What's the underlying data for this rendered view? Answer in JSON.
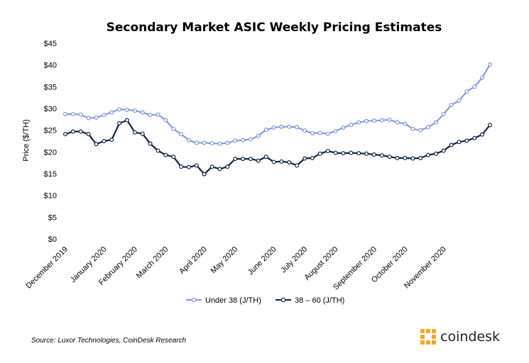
{
  "chart_data": {
    "type": "line",
    "title": "Secondary Market ASIC Weekly Pricing Estimates",
    "ylabel": "Price ($/TH)",
    "ylim": [
      0,
      45
    ],
    "yticks": [
      "$0",
      "$5",
      "$10",
      "$15",
      "$20",
      "$25",
      "$30",
      "$35",
      "$40",
      "$45"
    ],
    "ytick_values": [
      0,
      5,
      10,
      15,
      20,
      25,
      30,
      35,
      40,
      45
    ],
    "month_labels": [
      "December 2019",
      "January 2020",
      "February 2020",
      "March 2020",
      "April 2020",
      "May 2020",
      "June 2020",
      "July 2020",
      "August 2020",
      "September 2020",
      "October 2020",
      "November 2020"
    ],
    "month_label_index": [
      0,
      5,
      9,
      13,
      18,
      22,
      27,
      31,
      35,
      40,
      44,
      49
    ],
    "grid": false,
    "legend_position": "bottom",
    "series": [
      {
        "name": "Under 38 (J/TH)",
        "color": "#7b96e0",
        "marker": "open-circle",
        "values": [
          28.7,
          28.7,
          28.6,
          27.8,
          27.9,
          28.5,
          29.1,
          29.8,
          29.7,
          29.5,
          29.1,
          28.5,
          28.6,
          27.3,
          25.3,
          24.1,
          22.7,
          22.1,
          22.1,
          22.0,
          21.9,
          22.1,
          22.6,
          22.7,
          22.9,
          23.7,
          25.1,
          25.6,
          25.8,
          25.8,
          25.7,
          24.9,
          24.3,
          24.4,
          24.2,
          24.8,
          25.6,
          26.2,
          26.8,
          27.1,
          27.2,
          27.3,
          27.4,
          26.8,
          26.5,
          25.3,
          25.0,
          25.7,
          26.8,
          28.7,
          30.8,
          31.8,
          33.9,
          35.0,
          37.1,
          40.1
        ]
      },
      {
        "name": "38 – 60 (J/TH)",
        "color": "#0f2347",
        "marker": "open-circle",
        "values": [
          24.1,
          24.7,
          24.7,
          24.1,
          21.8,
          22.5,
          22.8,
          26.6,
          27.3,
          24.5,
          24.2,
          21.9,
          20.3,
          19.3,
          18.9,
          16.6,
          16.5,
          16.9,
          14.9,
          16.6,
          16.1,
          16.6,
          18.4,
          18.4,
          18.4,
          18.0,
          18.9,
          17.7,
          17.8,
          17.6,
          16.9,
          18.5,
          18.6,
          19.6,
          20.2,
          19.8,
          19.7,
          19.8,
          19.7,
          19.6,
          19.4,
          19.2,
          18.9,
          18.6,
          18.6,
          18.5,
          18.6,
          19.3,
          19.6,
          20.3,
          21.6,
          22.3,
          22.6,
          23.2,
          24.0,
          26.2
        ]
      }
    ]
  },
  "source": "Source: Luxor Technologies, CoinDesk Research",
  "logo": {
    "text": "coindesk",
    "color": "#f5a623"
  }
}
